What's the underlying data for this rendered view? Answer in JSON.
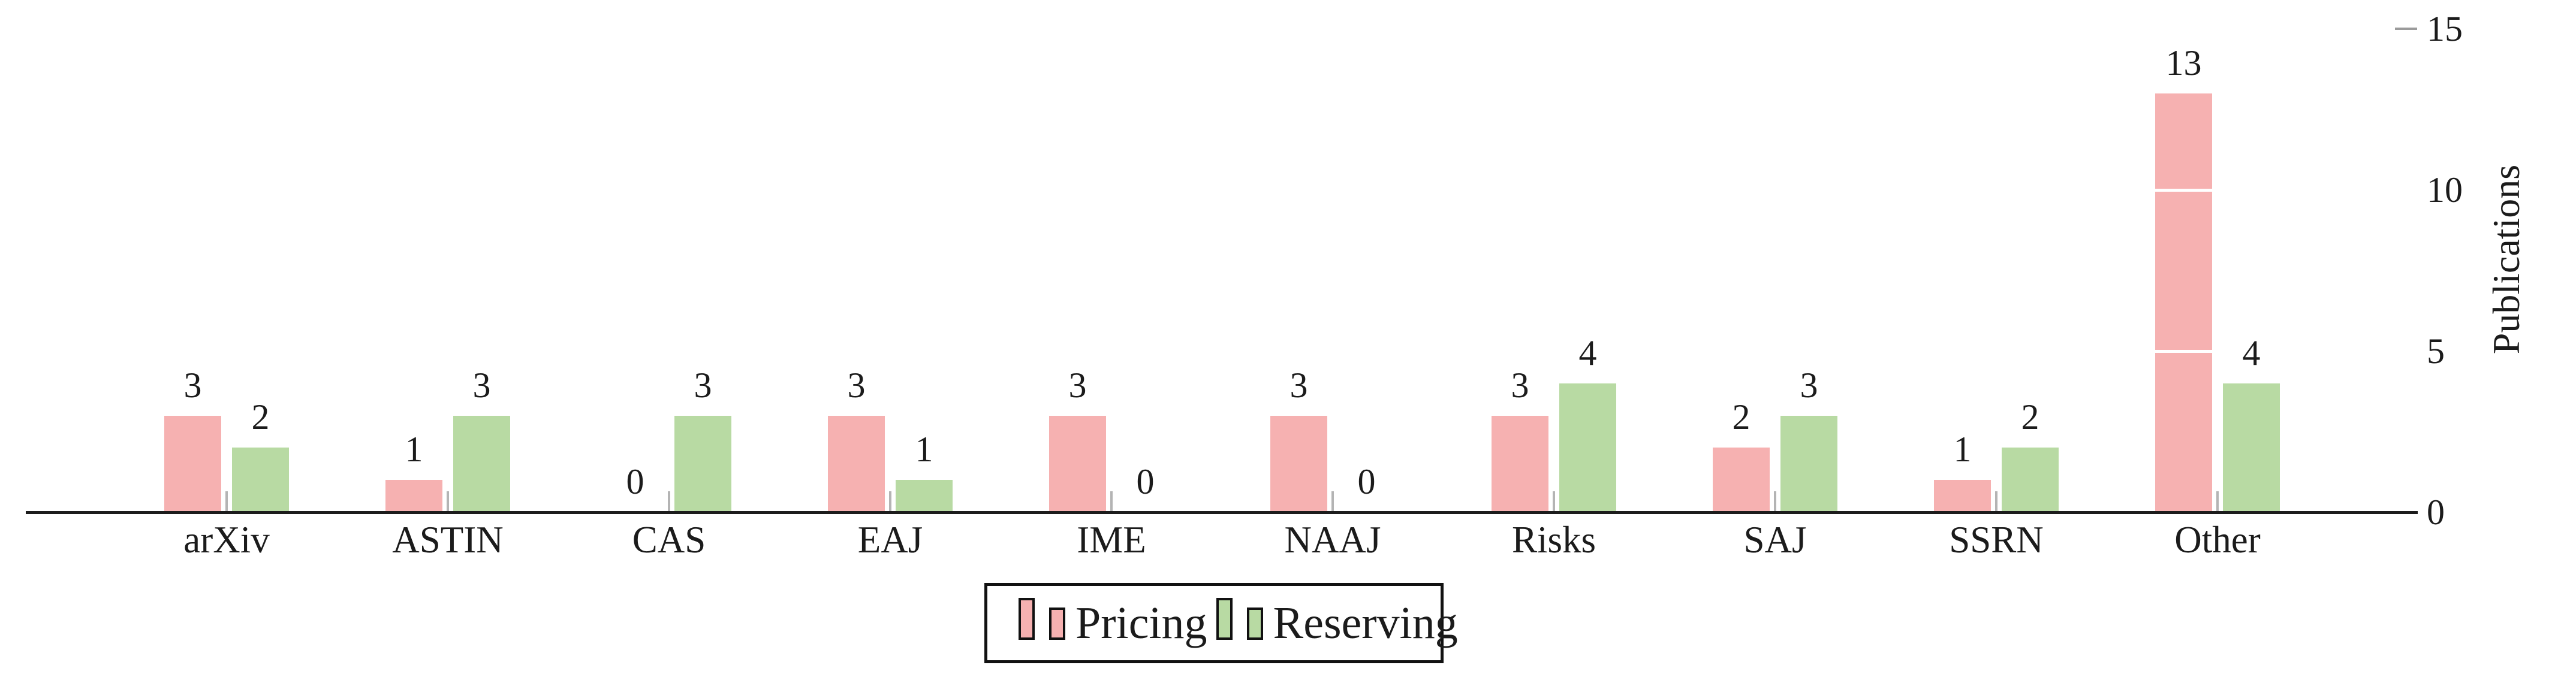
{
  "chart_data": {
    "type": "bar",
    "categories": [
      "arXiv",
      "ASTIN",
      "CAS",
      "EAJ",
      "IME",
      "NAAJ",
      "Risks",
      "SAJ",
      "SSRN",
      "Other"
    ],
    "series": [
      {
        "name": "Pricing",
        "color": "#f6b1b1",
        "values": [
          3,
          1,
          0,
          3,
          3,
          3,
          3,
          2,
          1,
          13
        ]
      },
      {
        "name": "Reserving",
        "color": "#b8daa3",
        "values": [
          2,
          3,
          3,
          1,
          0,
          0,
          4,
          3,
          2,
          4
        ]
      }
    ],
    "title": "",
    "xlabel": "",
    "ylabel": "Publications",
    "yticks": [
      0,
      5,
      10,
      15
    ],
    "ytick_labels": [
      "0",
      "5",
      "10",
      "15"
    ],
    "ylim": [
      0,
      15.5
    ],
    "value_labels_shown": true,
    "legend_position": "bottom-center",
    "white_gridline_values": [
      5,
      10
    ],
    "axis_color": "#1c1c1c",
    "y_tick_dash_color": "#9b9b9b",
    "group_tick_color": "#b4b4b4",
    "background_color": "#ffffff"
  }
}
